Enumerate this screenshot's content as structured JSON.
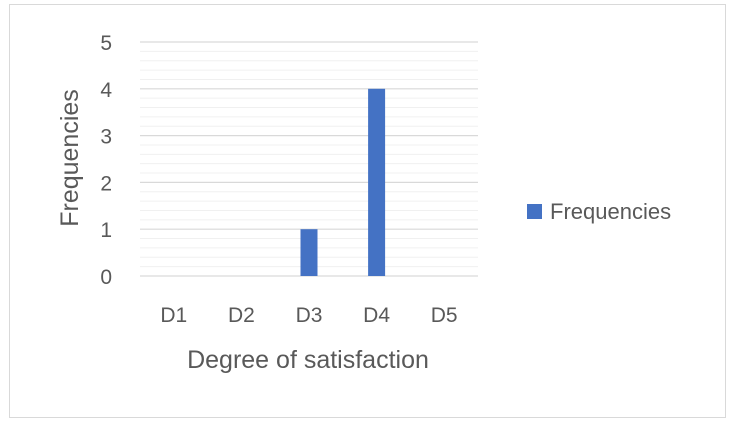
{
  "chart_data": {
    "type": "bar",
    "categories": [
      "D1",
      "D2",
      "D3",
      "D4",
      "D5"
    ],
    "series": [
      {
        "name": "Frequencies",
        "values": [
          0,
          0,
          1,
          4,
          0
        ],
        "color": "#4472c4"
      }
    ],
    "xlabel": "Degree of satisfaction",
    "ylabel": "Frequencies",
    "ylim": [
      0,
      5
    ],
    "y_ticks": [
      "0",
      "1",
      "2",
      "3",
      "4",
      "5"
    ],
    "grid": true,
    "legend": "right"
  }
}
